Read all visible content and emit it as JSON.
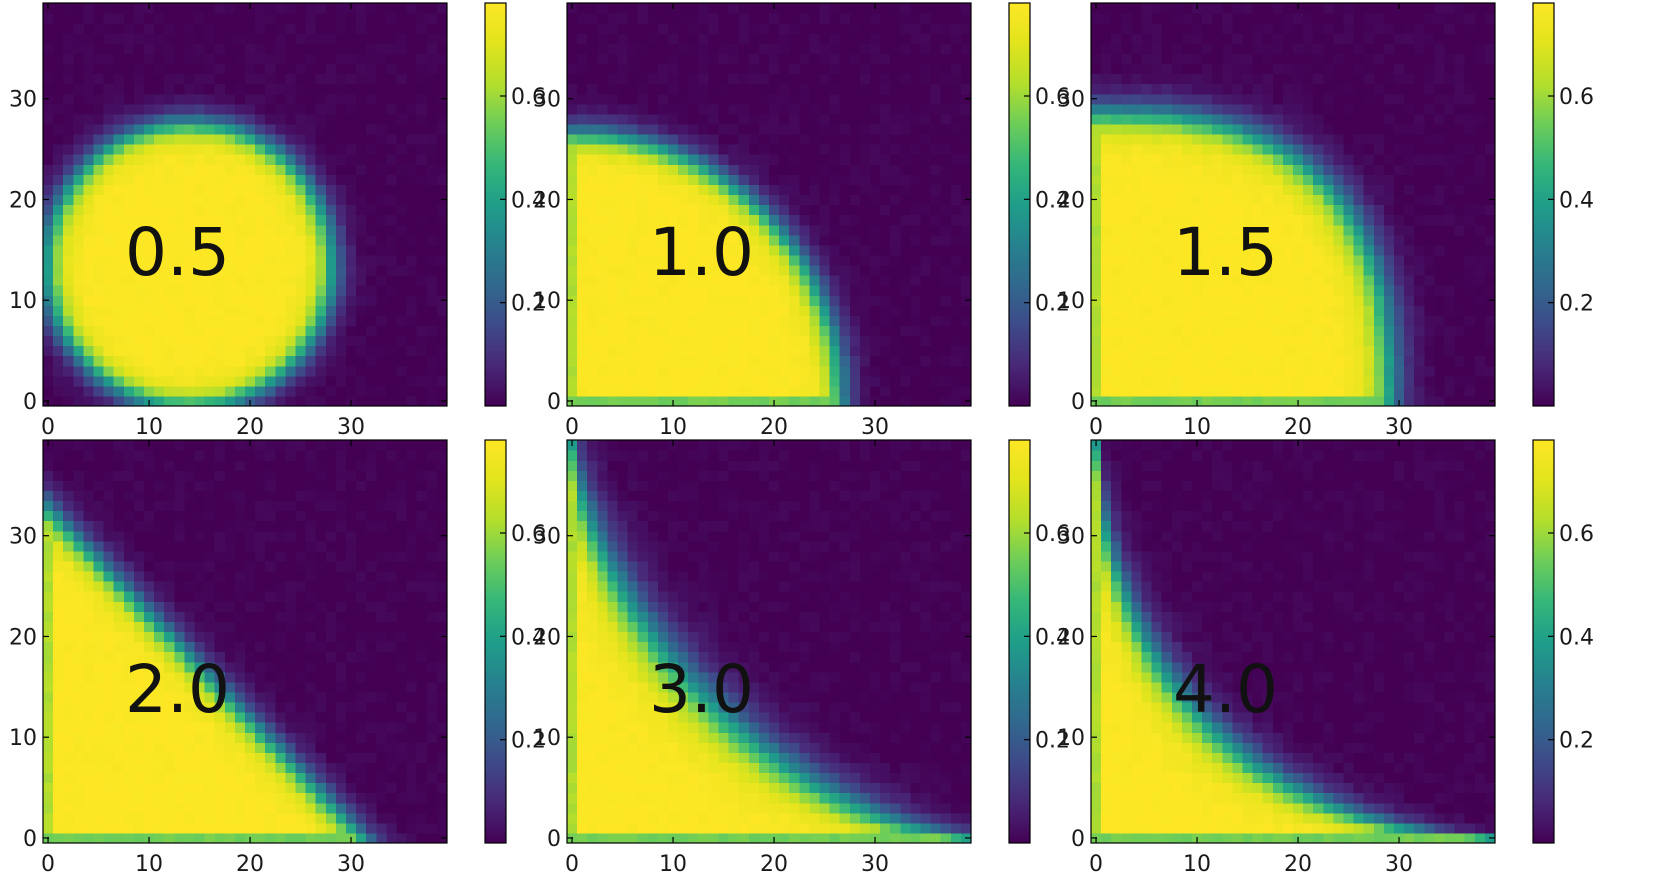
{
  "chart_data": {
    "type": "heatmap",
    "grid": [
      40,
      40
    ],
    "colormap": "viridis",
    "color_range": [
      0.0,
      0.78
    ],
    "xlim": [
      0,
      39
    ],
    "ylim": [
      0,
      39
    ],
    "x_ticks": [
      0,
      10,
      20,
      30
    ],
    "y_ticks": [
      0,
      10,
      20,
      30
    ],
    "x_tick_labels": [
      "0",
      "10",
      "20",
      "30"
    ],
    "y_tick_labels": [
      "0",
      "10",
      "20",
      "30"
    ],
    "colorbar_ticks": [
      0.2,
      0.4,
      0.6
    ],
    "colorbar_tick_labels": [
      "0.2",
      "0.4",
      "0.6"
    ],
    "high_value": 0.78,
    "low_value": 0.0,
    "layout": "2 rows x 3 columns",
    "panels": [
      {
        "label": "0.5",
        "shape": "circle",
        "center": [
          14,
          13.5
        ],
        "radius": 14
      },
      {
        "label": "1.0",
        "shape": "quarter-ellipse",
        "corner": [
          0,
          0
        ],
        "semi_axes": [
          26.5,
          26.5
        ],
        "bottom_row_intermediate": true
      },
      {
        "label": "1.5",
        "shape": "superellipse",
        "corner": [
          0,
          0
        ],
        "semi_axes": [
          29,
          28.5
        ],
        "exponent": 2.6,
        "bottom_row_intermediate": true
      },
      {
        "label": "2.0",
        "shape": "triangle",
        "corner": [
          0,
          0
        ],
        "intercepts": [
          31,
          32.5
        ],
        "bottom_row_intermediate": true
      },
      {
        "label": "3.0",
        "shape": "concave",
        "corner": [
          0,
          0
        ],
        "intercepts": [
          39,
          39
        ],
        "exponent": 0.65,
        "bottom_row_intermediate": true
      },
      {
        "label": "4.0",
        "shape": "concave",
        "corner": [
          0,
          0
        ],
        "intercepts": [
          39,
          39
        ],
        "exponent": 0.55,
        "bottom_row_intermediate": true
      }
    ]
  },
  "colors": {
    "low": "#440154",
    "high": "#fde725"
  }
}
